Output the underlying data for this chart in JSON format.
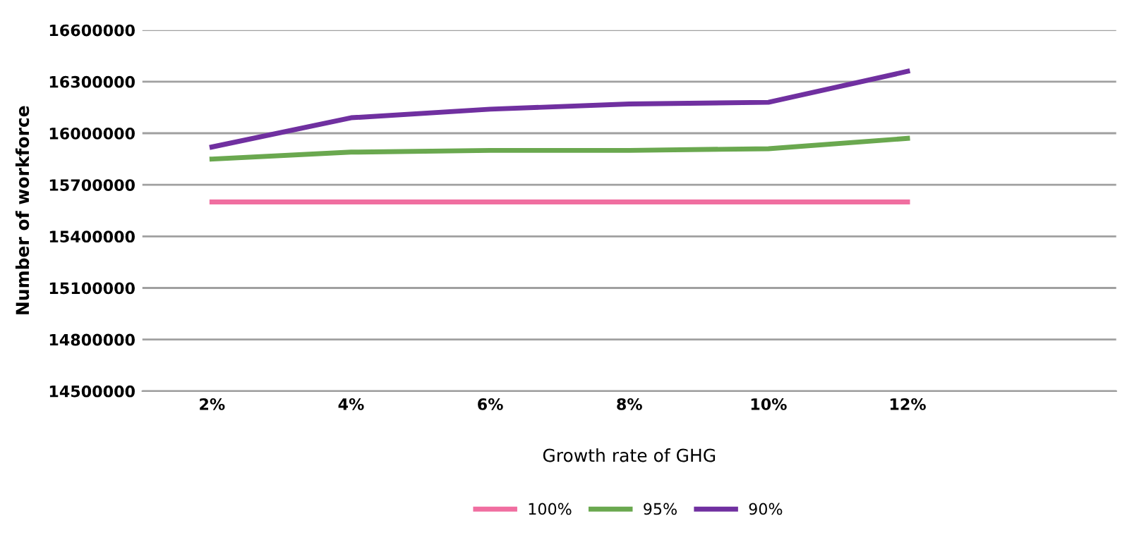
{
  "chart_data": {
    "type": "line",
    "xlabel": "Growth rate of GHG",
    "ylabel": "Number of workforce",
    "categories": [
      "2%",
      "4%",
      "6%",
      "8%",
      "10%",
      "12%",
      null
    ],
    "series": [
      {
        "name": "100%",
        "color": "#f06ea0",
        "values": [
          15600000,
          15600000,
          15600000,
          15600000,
          15600000,
          15600000,
          null
        ]
      },
      {
        "name": "95%",
        "color": "#6aa84f",
        "values": [
          15850000,
          15890000,
          15900000,
          15900000,
          15910000,
          15970000,
          null
        ]
      },
      {
        "name": "90%",
        "color": "#7030a0",
        "values": [
          15920000,
          16090000,
          16140000,
          16170000,
          16180000,
          16360000,
          null
        ]
      }
    ],
    "ylim": [
      14500000,
      16600000
    ],
    "yticks": [
      14500000,
      14800000,
      15100000,
      15400000,
      15700000,
      16000000,
      16300000,
      16600000
    ],
    "grid": "y",
    "legend": "bottom",
    "marker": "none",
    "line_style": "solid"
  }
}
